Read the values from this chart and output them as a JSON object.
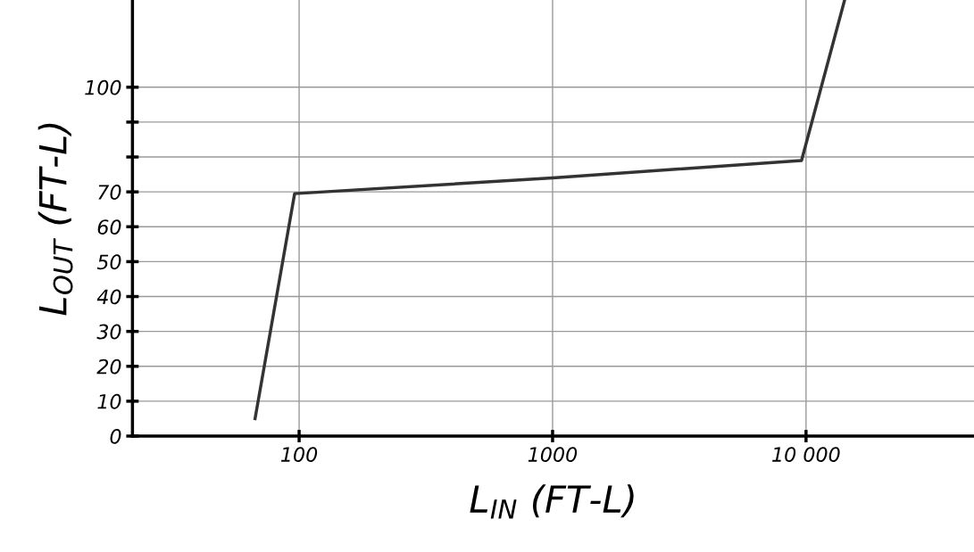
{
  "chart_data": {
    "type": "line",
    "xlabel": "L$_{IN}$ (FT-L)",
    "ylabel": "L$_{OUT}$ (FT-L)",
    "log": "x",
    "grid": true,
    "marker": "none",
    "line_style": "solid",
    "xlim": [
      22,
      46000
    ],
    "ylim": [
      0,
      125
    ],
    "xticks": [
      100,
      1000,
      {
        "value": 10000,
        "label": "10 000"
      }
    ],
    "yticks": [
      0,
      10,
      20,
      30,
      40,
      50,
      60,
      70,
      {
        "value": 80,
        "label": null
      },
      {
        "value": 90,
        "label": null
      },
      100
    ],
    "series": [
      {
        "color": "#333333",
        "x": [
          67,
          96,
          1000,
          9600,
          14200
        ],
        "values": [
          5,
          69.5,
          74,
          79,
          125
        ]
      }
    ]
  }
}
